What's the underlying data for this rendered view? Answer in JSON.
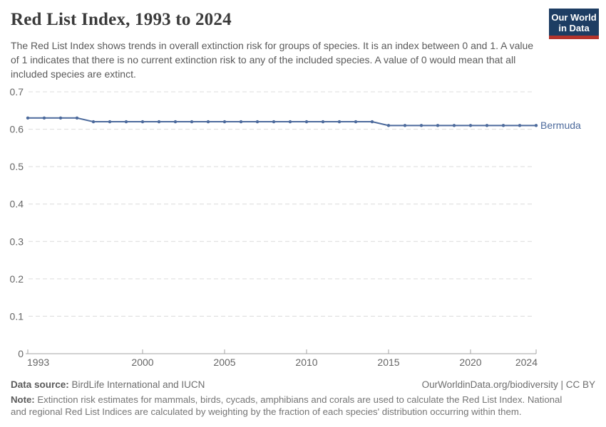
{
  "header": {
    "title": "Red List Index, 1993 to 2024",
    "subtitle": "The Red List Index shows trends in overall extinction risk for groups of species. It is an index between 0 and 1. A value of 1 indicates that there is no current extinction risk to any of the included species. A value of 0 would mean that all included species are extinct.",
    "logo": {
      "line1": "Our World",
      "line2": "in Data"
    }
  },
  "chart_data": {
    "type": "line",
    "title": "Red List Index, 1993 to 2024",
    "x": [
      1993,
      1994,
      1995,
      1996,
      1997,
      1998,
      1999,
      2000,
      2001,
      2002,
      2003,
      2004,
      2005,
      2006,
      2007,
      2008,
      2009,
      2010,
      2011,
      2012,
      2013,
      2014,
      2015,
      2016,
      2017,
      2018,
      2019,
      2020,
      2021,
      2022,
      2023,
      2024
    ],
    "series": [
      {
        "name": "Bermuda",
        "values": [
          0.63,
          0.63,
          0.63,
          0.63,
          0.62,
          0.62,
          0.62,
          0.62,
          0.62,
          0.62,
          0.62,
          0.62,
          0.62,
          0.62,
          0.62,
          0.62,
          0.62,
          0.62,
          0.62,
          0.62,
          0.62,
          0.62,
          0.61,
          0.61,
          0.61,
          0.61,
          0.61,
          0.61,
          0.61,
          0.61,
          0.61,
          0.61
        ]
      }
    ],
    "xlabel": "",
    "ylabel": "",
    "xlim": [
      1993,
      2024
    ],
    "ylim": [
      0,
      0.7
    ],
    "xticks": [
      1993,
      2000,
      2005,
      2010,
      2015,
      2020,
      2024
    ],
    "yticks": [
      0,
      0.1,
      0.2,
      0.3,
      0.4,
      0.5,
      0.6,
      0.7
    ],
    "grid": "horizontal-dashed",
    "legend_position": "end-of-line",
    "markers": true
  },
  "footer": {
    "datasource_label": "Data source:",
    "datasource": " BirdLife International and IUCN",
    "rights": "OurWorldinData.org/biodiversity | CC BY",
    "note_label": "Note:",
    "note": " Extinction risk estimates for mammals, birds, cycads, amphibians and corals are used to calculate the Red List Index. National and regional Red List Indices are calculated by weighting by the fraction of each species' distribution occurring within them."
  },
  "colors": {
    "line": "#4C6A9C",
    "grid": "#dcdcdc",
    "axis": "#a3a3a3",
    "logo_navy": "#1d3d63",
    "logo_red": "#b5342c"
  }
}
